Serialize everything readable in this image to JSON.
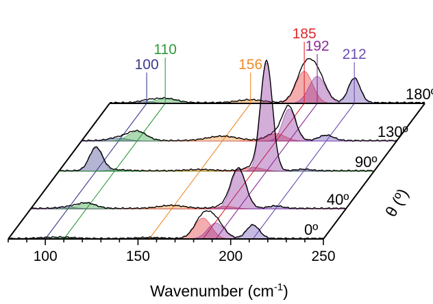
{
  "chart_data": {
    "type": "line",
    "subtype": "waterfall-3d",
    "xlabel": "Wavenumber (cm",
    "xlabel_sup": "-1",
    "xlabel_close": ")",
    "xlim": [
      80,
      250
    ],
    "xticks": [
      100,
      150,
      200,
      250
    ],
    "zlabel": "θ (º)",
    "angles": [
      "0º",
      "40º",
      "90º",
      "130º",
      "180º"
    ],
    "angle_values": [
      0,
      40,
      90,
      130,
      180
    ],
    "slice_line_colors": [
      "#e07a7a",
      "#a0408c",
      "#3a9a3a",
      "#b070c0",
      "#6a4ab0"
    ],
    "peaks": [
      {
        "label": "100",
        "x": 100,
        "color": "#3a3a8c",
        "label_pos": "left"
      },
      {
        "label": "110",
        "x": 110,
        "color": "#2e9a3a",
        "label_pos": "left"
      },
      {
        "label": "156",
        "x": 156,
        "color": "#f08a28",
        "label_pos": "left"
      },
      {
        "label": "185",
        "x": 185,
        "color": "#e0282e",
        "label_pos": "top"
      },
      {
        "label": "192",
        "x": 192,
        "color": "#8a2a9a",
        "label_pos": "top"
      },
      {
        "label": "212",
        "x": 212,
        "color": "#6a4ab0",
        "label_pos": "top"
      }
    ],
    "series": [
      {
        "name": "0º",
        "baseline": 0.02,
        "components": [
          {
            "center": 100,
            "amp": 0.03,
            "width": 5,
            "color": "#3a3a8c"
          },
          {
            "center": 110,
            "amp": 0.05,
            "width": 6,
            "color": "#2e9a3a"
          },
          {
            "center": 156,
            "amp": 0.04,
            "width": 7,
            "color": "#f08a28"
          },
          {
            "center": 185,
            "amp": 0.85,
            "width": 4.5,
            "color": "#e0282e"
          },
          {
            "center": 192,
            "amp": 0.65,
            "width": 4.5,
            "color": "#8a2a9a"
          },
          {
            "center": 212,
            "amp": 0.55,
            "width": 3.5,
            "color": "#6a4ab0"
          }
        ]
      },
      {
        "name": "40º",
        "baseline": 0.02,
        "components": [
          {
            "center": 100,
            "amp": 0.06,
            "width": 5,
            "color": "#3a3a8c"
          },
          {
            "center": 110,
            "amp": 0.22,
            "width": 5,
            "color": "#2e9a3a"
          },
          {
            "center": 156,
            "amp": 0.12,
            "width": 7,
            "color": "#f08a28"
          },
          {
            "center": 185,
            "amp": 0.1,
            "width": 5,
            "color": "#e0282e"
          },
          {
            "center": 192,
            "amp": 1.6,
            "width": 4,
            "color": "#8a2a9a"
          },
          {
            "center": 212,
            "amp": 0.1,
            "width": 4,
            "color": "#6a4ab0"
          }
        ]
      },
      {
        "name": "90º",
        "baseline": 0.02,
        "components": [
          {
            "center": 100,
            "amp": 0.95,
            "width": 3.5,
            "color": "#3a3a8c"
          },
          {
            "center": 110,
            "amp": 0.04,
            "width": 6,
            "color": "#2e9a3a"
          },
          {
            "center": 156,
            "amp": 0.05,
            "width": 7,
            "color": "#f08a28"
          },
          {
            "center": 185,
            "amp": 0.15,
            "width": 5,
            "color": "#e0282e"
          },
          {
            "center": 192,
            "amp": 4.4,
            "width": 3.2,
            "color": "#8a2a9a"
          },
          {
            "center": 212,
            "amp": 0.06,
            "width": 4,
            "color": "#6a4ab0"
          }
        ]
      },
      {
        "name": "130º",
        "baseline": 0.02,
        "components": [
          {
            "center": 100,
            "amp": 0.12,
            "width": 5,
            "color": "#3a3a8c"
          },
          {
            "center": 110,
            "amp": 0.38,
            "width": 5,
            "color": "#2e9a3a"
          },
          {
            "center": 156,
            "amp": 0.18,
            "width": 8,
            "color": "#f08a28"
          },
          {
            "center": 185,
            "amp": 0.3,
            "width": 5,
            "color": "#e0282e"
          },
          {
            "center": 192,
            "amp": 1.3,
            "width": 3.5,
            "color": "#8a2a9a"
          },
          {
            "center": 212,
            "amp": 0.22,
            "width": 4,
            "color": "#6a4ab0"
          }
        ]
      },
      {
        "name": "180º",
        "baseline": 0.03,
        "components": [
          {
            "center": 100,
            "amp": 0.08,
            "width": 4,
            "color": "#3a3a8c"
          },
          {
            "center": 110,
            "amp": 0.18,
            "width": 6,
            "color": "#2e9a3a"
          },
          {
            "center": 156,
            "amp": 0.12,
            "width": 7,
            "color": "#f08a28"
          },
          {
            "center": 185,
            "amp": 1.3,
            "width": 4.5,
            "color": "#e0282e"
          },
          {
            "center": 192,
            "amp": 1.1,
            "width": 4.5,
            "color": "#8a2a9a"
          },
          {
            "center": 212,
            "amp": 1.0,
            "width": 3.2,
            "color": "#6a4ab0"
          }
        ]
      }
    ]
  }
}
